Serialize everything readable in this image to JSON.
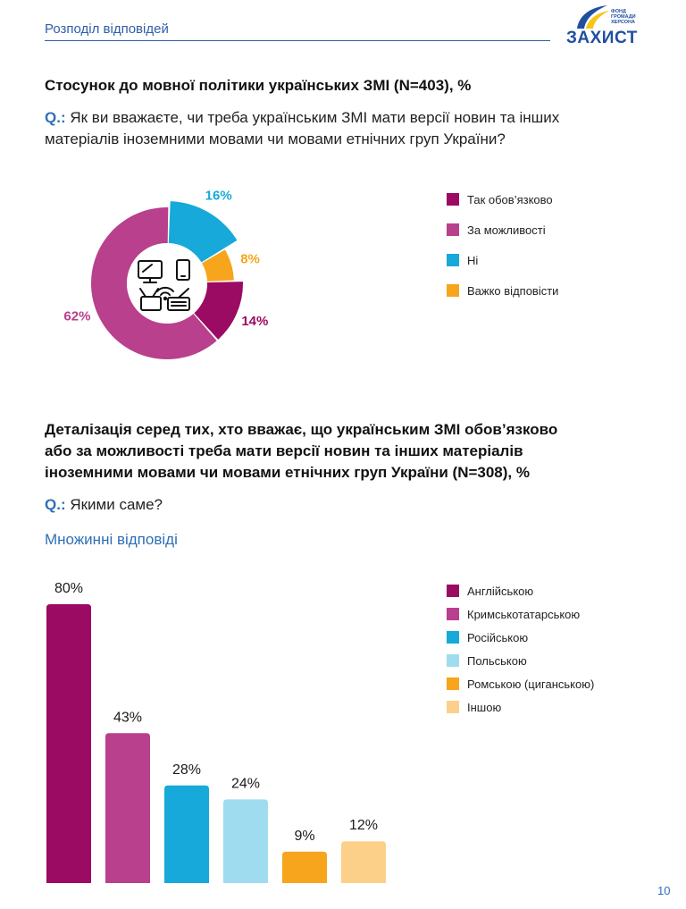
{
  "header": {
    "title": "Розподіл відповідей"
  },
  "logo": {
    "word": "ЗАХИСТ",
    "small_text": "ФОНД ГРОМАДИ ХЕРСОНА"
  },
  "section1": {
    "title": "Стосунок до мовної політики українських ЗМІ (N=403), %",
    "q_label": "Q.:",
    "question_line1": "Як ви вважаєте, чи треба українським ЗМІ мати версії новин та інших",
    "question_line2": "матеріалів іноземними мовами чи мовами етнічних груп України?"
  },
  "section2": {
    "title_line1": "Деталізація серед тих, хто вважає, що українським ЗМІ обов’язково",
    "title_line2": "або за можливості треба мати версії новин та інших матеріалів",
    "title_line3": "іноземними мовами чи мовами етнічних груп України  (N=308), %",
    "q_label": "Q.:",
    "question": "Якими саме?",
    "multi_label": "Множинні відповіді"
  },
  "page_number": "10",
  "chart_data": [
    {
      "type": "pie",
      "style": "donut",
      "center_icon": "devices-media-icon",
      "categories": [
        "Так обов’язково",
        "За можливості",
        "Ні",
        "Важко відповісти"
      ],
      "values": [
        14,
        62,
        16,
        8
      ],
      "value_labels": [
        "14%",
        "62%",
        "16%",
        "8%"
      ],
      "colors": [
        "#9b0a63",
        "#b8408c",
        "#17a9d9",
        "#f6a51c"
      ],
      "legend": "right"
    },
    {
      "type": "bar",
      "categories": [
        "Англійською",
        "Кримськотатарською",
        "Російською",
        "Польською",
        "Ромською (циганською)",
        "Іншою"
      ],
      "values": [
        80,
        43,
        28,
        24,
        9,
        12
      ],
      "value_labels": [
        "80%",
        "43%",
        "28%",
        "24%",
        "9%",
        "12%"
      ],
      "colors": [
        "#9b0a63",
        "#b8408c",
        "#17a9d9",
        "#9fdcef",
        "#f6a51c",
        "#fdd089"
      ],
      "legend": "right",
      "ylim": [
        0,
        80
      ],
      "grid": false
    }
  ]
}
